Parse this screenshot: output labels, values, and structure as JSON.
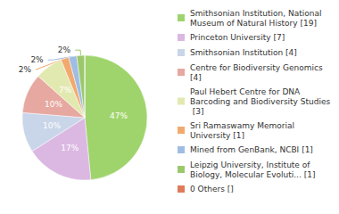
{
  "chart_data": {
    "type": "pie",
    "categories": [
      "Smithsonian Institution, National Museum of Natural History [19]",
      "Princeton University [7]",
      "Smithsonian Institution [4]",
      "Centre for Biodiversity Genomics [4]",
      "Paul Hebert Centre for DNA Barcoding and Biodiversity Studies [3]",
      "Sri Ramaswamy Memorial University [1]",
      "Mined from GenBank, NCBI [1]",
      "Leipzig University, Institute of Biology, Molecular Evoluti... [1]",
      "0 Others []"
    ],
    "values": [
      47,
      17,
      10,
      10,
      7,
      2,
      2,
      2,
      0
    ],
    "value_labels": [
      "47%",
      "17%",
      "10%",
      "10%",
      "7%",
      "2%",
      "2%",
      "2%",
      null
    ],
    "colors": [
      "#9fd46c",
      "#dbb8e2",
      "#c9d5e8",
      "#e6a8a0",
      "#e2e9b0",
      "#f2a96e",
      "#9fbde2",
      "#9cc86c",
      "#e07a5a"
    ],
    "data_labels": true,
    "legend": "right"
  }
}
